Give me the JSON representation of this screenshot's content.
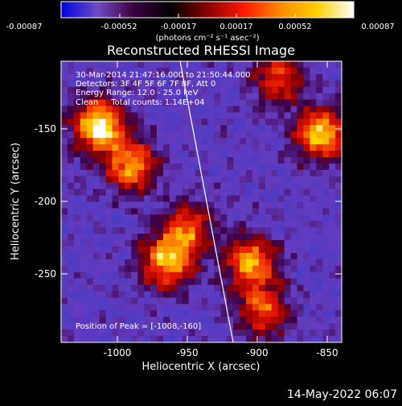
{
  "colorbar": {
    "tick_labels": [
      "-0.00087",
      "-0.00052",
      "-0.00017",
      "0.00017",
      "0.00052",
      "0.00087"
    ],
    "unit_label": "(photons cm⁻² s⁻¹ asec⁻²)",
    "colors": [
      "#0000e0",
      "#6f4cc2",
      "#3a003e",
      "#000000",
      "#8a0000",
      "#ff1a00",
      "#ff8a00",
      "#ffd000",
      "#ffffff"
    ]
  },
  "image": {
    "title": "Reconstructed RHESSI Image",
    "info_lines": [
      "30-Mar-2014 21:47:16.000 to 21:50:44.000",
      "Detectors: 3F 4F 5F 6F 7F 8F, Att 0",
      "Energy Range: 12.0 - 25.0 keV",
      "Clean     Total counts: 1.14E+04"
    ],
    "peak_label": "Position of Peak = [-1008,-160]"
  },
  "axes": {
    "xlabel": "Heliocentric X (arcsec)",
    "ylabel": "Heliocentric Y (arcsec)",
    "x_ticks": [
      "-1000",
      "-950",
      "-900",
      "-850"
    ],
    "y_ticks": [
      "-150",
      "-200",
      "-250"
    ]
  },
  "footer": {
    "timestamp": "14-May-2022 06:07"
  },
  "chart_data": {
    "type": "heatmap",
    "title": "Reconstructed RHESSI Image",
    "xlabel": "Heliocentric X (arcsec)",
    "ylabel": "Heliocentric Y (arcsec)",
    "xlim": [
      -1035,
      -835
    ],
    "ylim": [
      -295,
      -120
    ],
    "color_scale": [
      -0.00087,
      0.00087
    ],
    "peak_position": [
      -1008,
      -160
    ],
    "source_peaks": [
      {
        "x": -1008,
        "y": -160,
        "intensity": 1.0
      },
      {
        "x": -985,
        "y": -185,
        "intensity": 0.75
      },
      {
        "x": -960,
        "y": -245,
        "intensity": 0.8
      },
      {
        "x": -945,
        "y": -225,
        "intensity": 0.6
      },
      {
        "x": -900,
        "y": -245,
        "intensity": 0.75
      },
      {
        "x": -890,
        "y": -275,
        "intensity": 0.6
      },
      {
        "x": -850,
        "y": -165,
        "intensity": 0.85
      },
      {
        "x": -880,
        "y": -130,
        "intensity": 0.55
      }
    ],
    "limb": [
      [
        -955,
        -120
      ],
      [
        -915,
        -295
      ]
    ]
  }
}
